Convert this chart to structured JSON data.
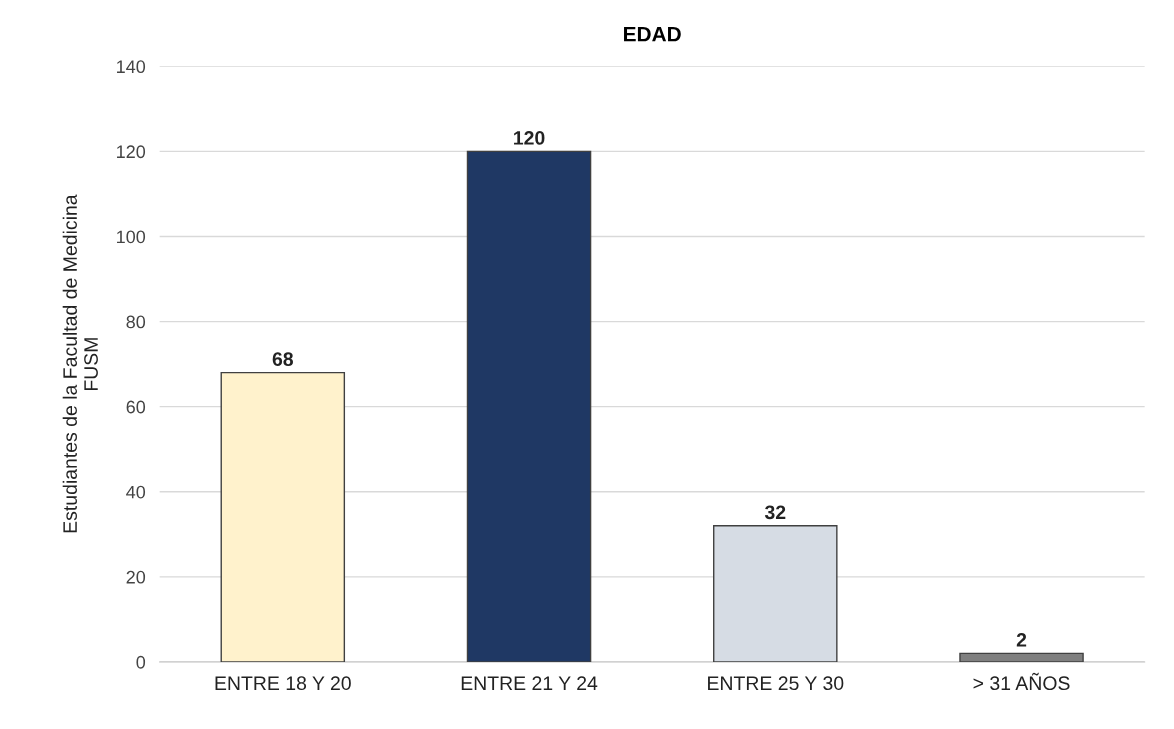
{
  "chart_data": {
    "type": "bar",
    "title": "EDAD",
    "ylabel": "Estudiantes de la Facultad de Medicina\nFUSM",
    "categories": [
      "ENTRE 18 Y 20",
      "ENTRE 21 Y 24",
      "ENTRE 25 Y 30",
      "> 31 AÑOS"
    ],
    "values": [
      68,
      120,
      32,
      2
    ],
    "colors": [
      "#fff2cc",
      "#1f3864",
      "#d6dce4",
      "#7f7f7f"
    ],
    "ylim": [
      0,
      140
    ],
    "yticks": [
      0,
      20,
      40,
      60,
      80,
      100,
      120,
      140
    ],
    "grid": "y",
    "data_labels": true
  }
}
